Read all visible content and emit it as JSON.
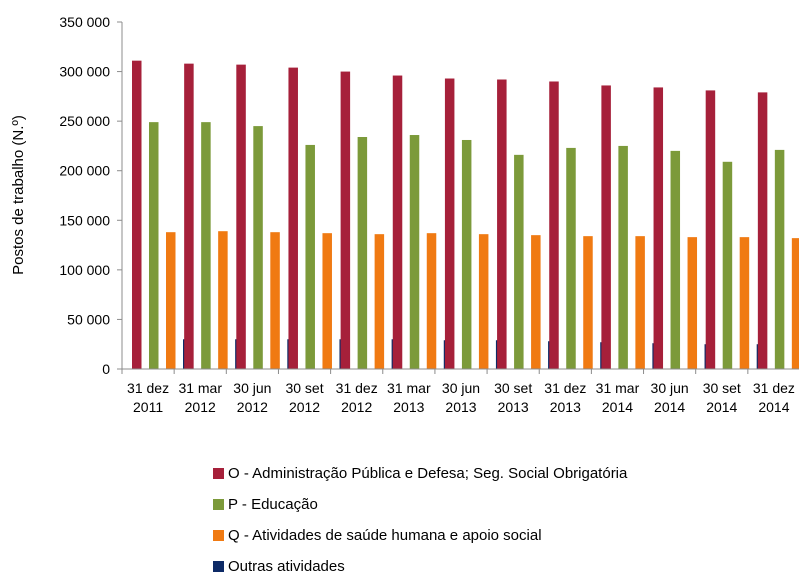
{
  "chart_data": {
    "type": "bar",
    "title": "",
    "xlabel": "",
    "ylabel": "Postos de trabalho (N.º)",
    "ylim": [
      0,
      350000
    ],
    "yticks": [
      {
        "value": 0,
        "label": "0"
      },
      {
        "value": 50000,
        "label": "50 000"
      },
      {
        "value": 100000,
        "label": "100 000"
      },
      {
        "value": 150000,
        "label": "150 000"
      },
      {
        "value": 200000,
        "label": "200 000"
      },
      {
        "value": 250000,
        "label": "250 000"
      },
      {
        "value": 300000,
        "label": "300 000"
      },
      {
        "value": 350000,
        "label": "350 000"
      }
    ],
    "categories": [
      {
        "line1": "31 dez",
        "line2": "2011"
      },
      {
        "line1": "31 mar",
        "line2": "2012"
      },
      {
        "line1": "30 jun",
        "line2": "2012"
      },
      {
        "line1": "30 set",
        "line2": "2012"
      },
      {
        "line1": "31 dez",
        "line2": "2012"
      },
      {
        "line1": "31 mar",
        "line2": "2013"
      },
      {
        "line1": "30 jun",
        "line2": "2013"
      },
      {
        "line1": "30 set",
        "line2": "2013"
      },
      {
        "line1": "31 dez",
        "line2": "2013"
      },
      {
        "line1": "31 mar",
        "line2": "2014"
      },
      {
        "line1": "30 jun",
        "line2": "2014"
      },
      {
        "line1": "30 set",
        "line2": "2014"
      },
      {
        "line1": "31 dez",
        "line2": "2014"
      }
    ],
    "grid": false,
    "legend_position": "bottom",
    "series": [
      {
        "name": "O - Administração Pública e Defesa; Seg. Social Obrigatória",
        "color": "#A6203A",
        "values": [
          311000,
          308000,
          307000,
          304000,
          300000,
          296000,
          293000,
          292000,
          290000,
          286000,
          284000,
          281000,
          279000
        ]
      },
      {
        "name": "P - Educação",
        "color": "#7C9A3A",
        "values": [
          249000,
          249000,
          245000,
          226000,
          234000,
          236000,
          231000,
          216000,
          223000,
          225000,
          220000,
          209000,
          221000
        ]
      },
      {
        "name": "Q - Atividades de saúde humana e apoio social",
        "color": "#F07A12",
        "values": [
          138000,
          139000,
          138000,
          137000,
          136000,
          137000,
          136000,
          135000,
          134000,
          134000,
          133000,
          133000,
          132000
        ]
      },
      {
        "name": "Outras atividades",
        "color": "#0D2A66",
        "values": [
          30000,
          30000,
          30000,
          30000,
          30000,
          29000,
          29000,
          28000,
          27000,
          26000,
          25000,
          25000,
          24000
        ]
      }
    ]
  }
}
